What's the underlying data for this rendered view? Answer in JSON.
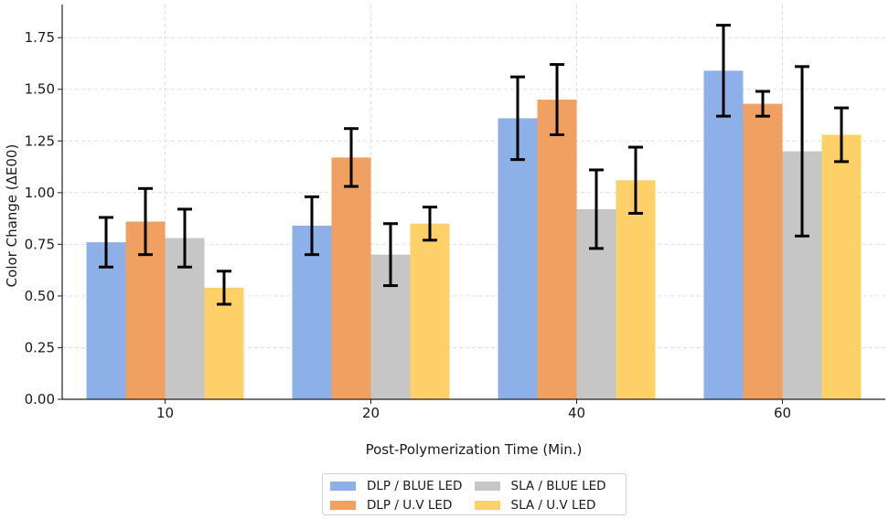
{
  "chart_data": {
    "type": "bar",
    "title": "",
    "xlabel": "Post-Polymerization Time (Min.)",
    "ylabel": "Color Change (ΔE00)",
    "categories": [
      "10",
      "20",
      "40",
      "60"
    ],
    "ylim": [
      0,
      1.91
    ],
    "yticks": [
      "0.00",
      "0.25",
      "0.50",
      "0.75",
      "1.00",
      "1.25",
      "1.50",
      "1.75"
    ],
    "ytick_values": [
      0,
      0.25,
      0.5,
      0.75,
      1.0,
      1.25,
      1.5,
      1.75
    ],
    "grid": true,
    "legend_position": "bottom-center",
    "series": [
      {
        "name": "DLP / BLUE LED",
        "color": "#8eb0e8",
        "values": [
          0.76,
          0.84,
          1.36,
          1.59
        ],
        "errors": [
          0.12,
          0.14,
          0.2,
          0.22
        ]
      },
      {
        "name": "DLP / U.V LED",
        "color": "#f0a060",
        "values": [
          0.86,
          1.17,
          1.45,
          1.43
        ],
        "errors": [
          0.16,
          0.14,
          0.17,
          0.06
        ]
      },
      {
        "name": "SLA / BLUE LED",
        "color": "#c6c6c6",
        "values": [
          0.78,
          0.7,
          0.92,
          1.2
        ],
        "errors": [
          0.14,
          0.15,
          0.19,
          0.41
        ]
      },
      {
        "name": "SLA / U.V LED",
        "color": "#fdd068",
        "values": [
          0.54,
          0.85,
          1.06,
          1.28
        ],
        "errors": [
          0.08,
          0.08,
          0.16,
          0.13
        ]
      }
    ]
  },
  "legend": {
    "items": [
      {
        "label": "DLP / BLUE LED",
        "color": "#8eb0e8"
      },
      {
        "label": "SLA / BLUE LED",
        "color": "#c6c6c6"
      },
      {
        "label": "DLP / U.V LED",
        "color": "#f0a060"
      },
      {
        "label": "SLA / U.V LED",
        "color": "#fdd068"
      }
    ]
  }
}
